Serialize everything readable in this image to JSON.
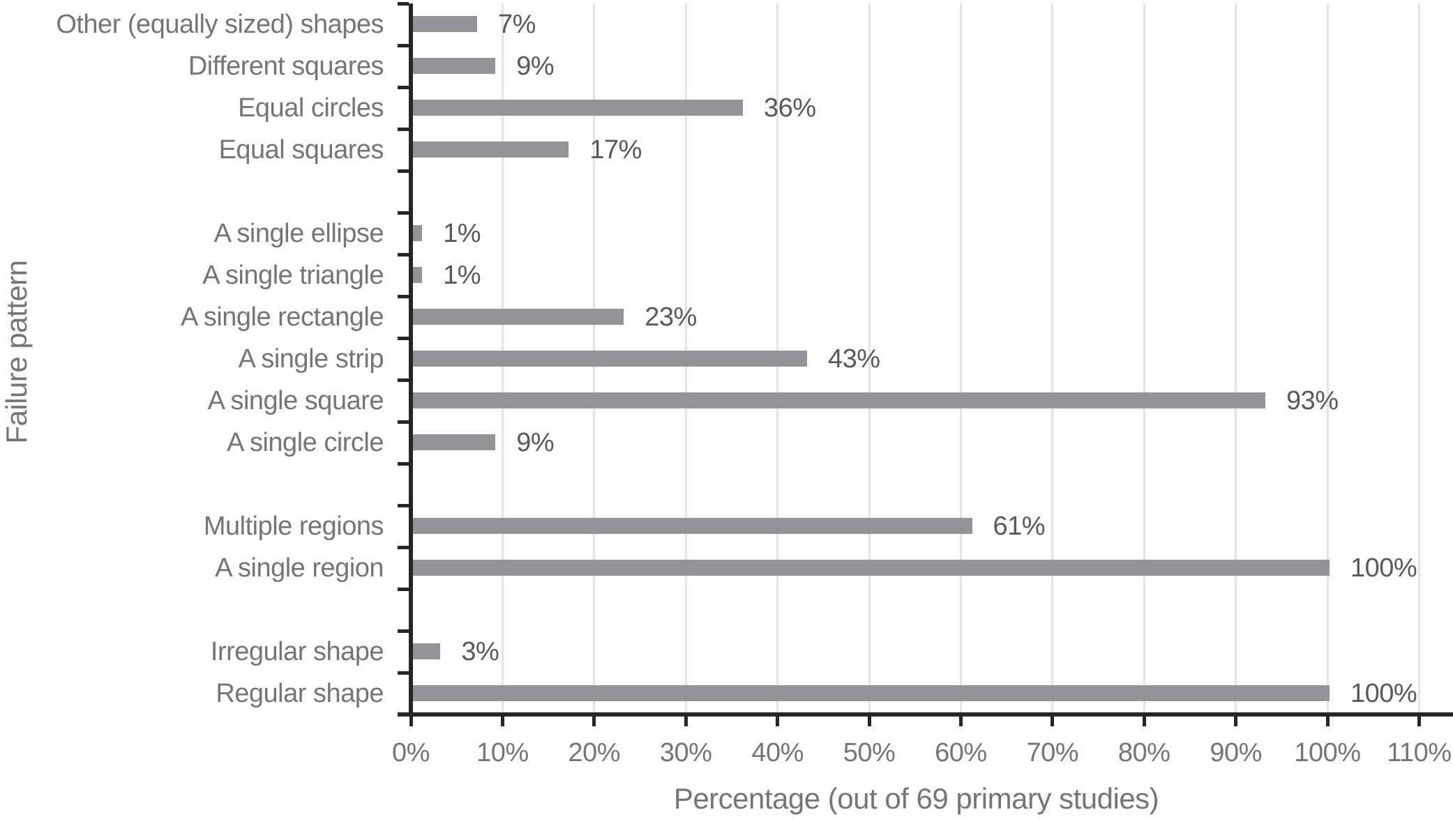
{
  "chart_data": {
    "type": "bar",
    "orientation": "horizontal",
    "title": "",
    "xlabel": "Percentage (out of 69 primary studies)",
    "ylabel": "Failure pattern",
    "xlim": [
      0,
      110
    ],
    "grid": "vertical gridlines every 10%",
    "legend": "none",
    "x_ticks": [
      {
        "value": 0,
        "label": "0%"
      },
      {
        "value": 10,
        "label": "10%"
      },
      {
        "value": 20,
        "label": "20%"
      },
      {
        "value": 30,
        "label": "30%"
      },
      {
        "value": 40,
        "label": "40%"
      },
      {
        "value": 50,
        "label": "50%"
      },
      {
        "value": 60,
        "label": "60%"
      },
      {
        "value": 70,
        "label": "70%"
      },
      {
        "value": 80,
        "label": "80%"
      },
      {
        "value": 90,
        "label": "90%"
      },
      {
        "value": 100,
        "label": "100%"
      },
      {
        "value": 110,
        "label": "110%"
      }
    ],
    "rows": [
      {
        "label": "Other (equally sized) shapes",
        "value": 7,
        "value_label": "7%"
      },
      {
        "label": "Different squares",
        "value": 9,
        "value_label": "9%"
      },
      {
        "label": "Equal circles",
        "value": 36,
        "value_label": "36%"
      },
      {
        "label": "Equal squares",
        "value": 17,
        "value_label": "17%"
      },
      {
        "label": "",
        "value": null,
        "value_label": ""
      },
      {
        "label": "A single ellipse",
        "value": 1,
        "value_label": "1%"
      },
      {
        "label": "A single triangle",
        "value": 1,
        "value_label": "1%"
      },
      {
        "label": "A single rectangle",
        "value": 23,
        "value_label": "23%"
      },
      {
        "label": "A single strip",
        "value": 43,
        "value_label": "43%"
      },
      {
        "label": "A single square",
        "value": 93,
        "value_label": "93%"
      },
      {
        "label": "A single circle",
        "value": 9,
        "value_label": "9%"
      },
      {
        "label": "",
        "value": null,
        "value_label": ""
      },
      {
        "label": "Multiple regions",
        "value": 61,
        "value_label": "61%"
      },
      {
        "label": "A single region",
        "value": 100,
        "value_label": "100%"
      },
      {
        "label": "",
        "value": null,
        "value_label": ""
      },
      {
        "label": "Irregular shape",
        "value": 3,
        "value_label": "3%"
      },
      {
        "label": "Regular shape",
        "value": 100,
        "value_label": "100%"
      }
    ]
  },
  "colors": {
    "bar": "#949498",
    "axis_line": "#262626",
    "gridline": "#e4e4e4",
    "category_text": "#757575",
    "tick_text": "#757575",
    "title_text": "#757575",
    "value_text": "#595959",
    "background": "#ffffff"
  }
}
